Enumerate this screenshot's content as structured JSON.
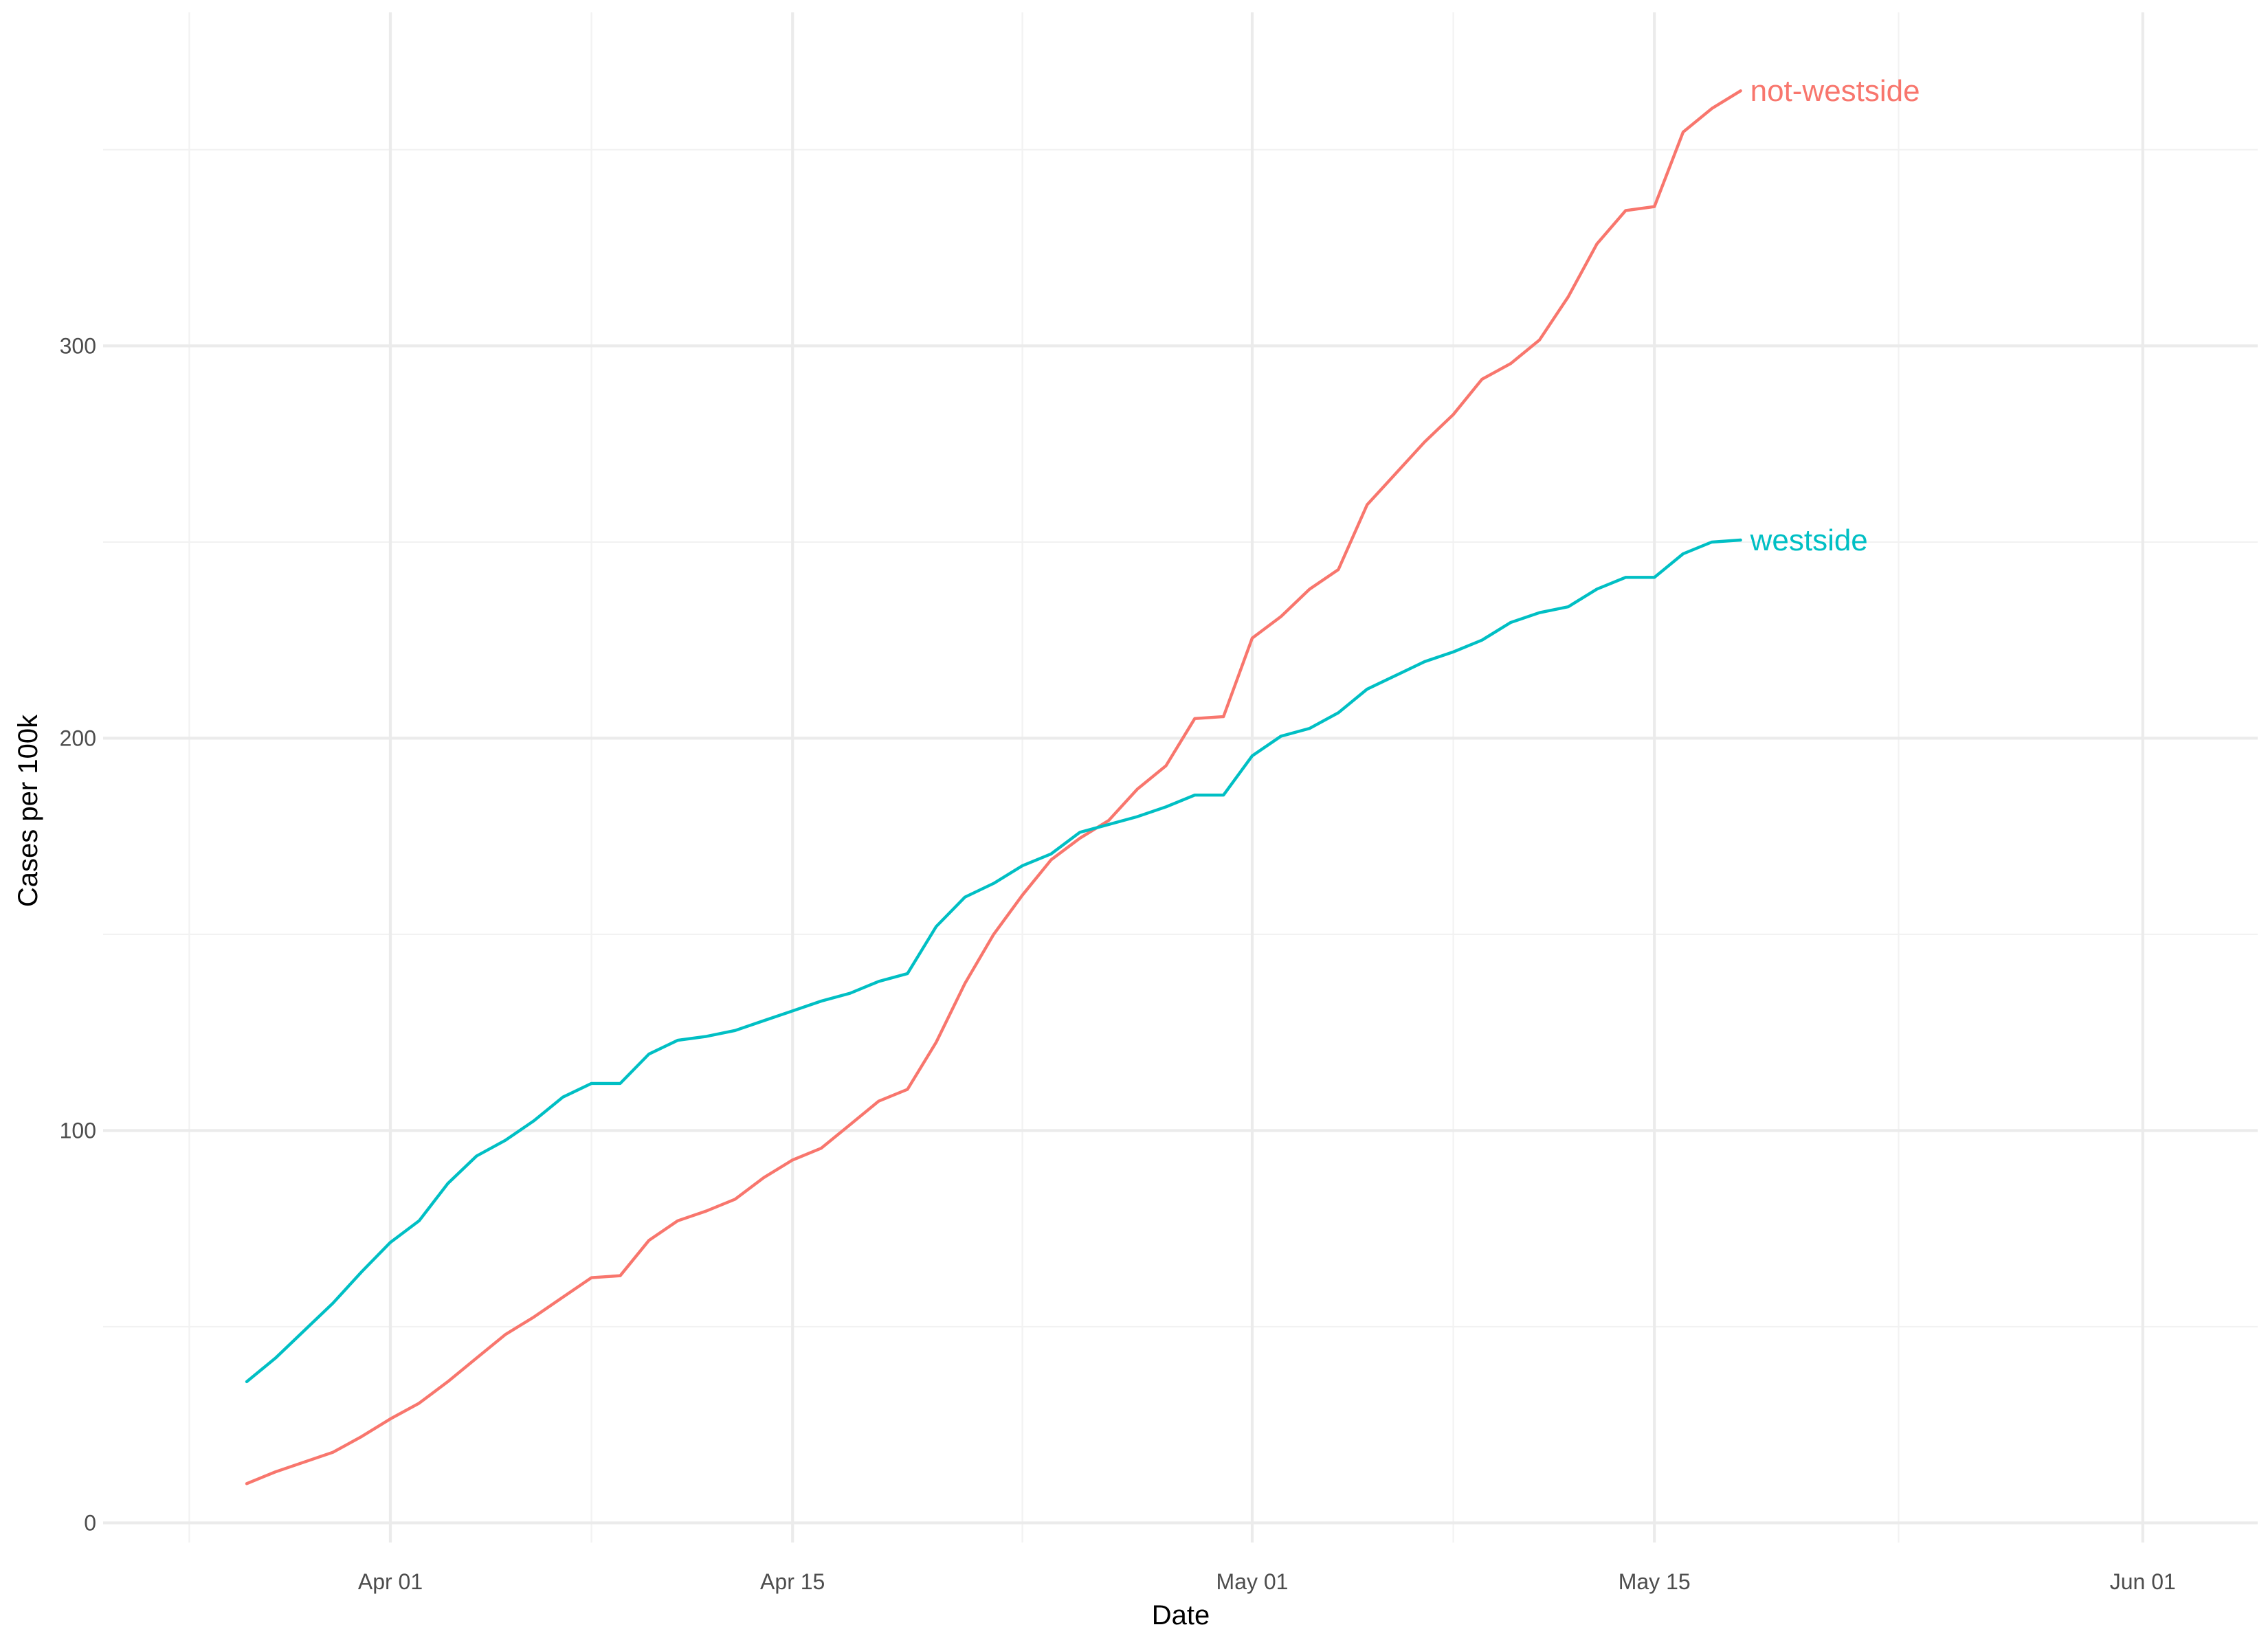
{
  "chart_data": {
    "type": "line",
    "title": "",
    "xlabel": "Date",
    "ylabel": "Cases per 100k",
    "x_axis": {
      "type": "date",
      "range_days": [
        -10,
        65
      ],
      "major_ticks": [
        {
          "day": 0,
          "label": "Apr 01"
        },
        {
          "day": 14,
          "label": "Apr 15"
        },
        {
          "day": 30,
          "label": "May 01"
        },
        {
          "day": 44,
          "label": "May 15"
        },
        {
          "day": 61,
          "label": "Jun 01"
        }
      ],
      "minor_ticks": [
        -7,
        7,
        22,
        37,
        52.5
      ]
    },
    "y_axis": {
      "range": [
        -5,
        385
      ],
      "major_ticks": [
        {
          "value": 0,
          "label": "0"
        },
        {
          "value": 100,
          "label": "100"
        },
        {
          "value": 200,
          "label": "200"
        },
        {
          "value": 300,
          "label": "300"
        }
      ],
      "minor_ticks": [
        50,
        150,
        250,
        350
      ]
    },
    "grid": true,
    "legend": "direct labels at line ends (right)",
    "x_day_origin": "Apr 01",
    "series": [
      {
        "name": "not-westside",
        "color": "#f8766d",
        "points": [
          [
            -5,
            10
          ],
          [
            -4,
            13
          ],
          [
            -3,
            15.5
          ],
          [
            -2,
            18
          ],
          [
            -1,
            22
          ],
          [
            0,
            26.5
          ],
          [
            1,
            30.5
          ],
          [
            2,
            36
          ],
          [
            3,
            42
          ],
          [
            4,
            48
          ],
          [
            5,
            52.5
          ],
          [
            6,
            57.5
          ],
          [
            7,
            62.5
          ],
          [
            8,
            63
          ],
          [
            9,
            72
          ],
          [
            10,
            77
          ],
          [
            11,
            79.5
          ],
          [
            12,
            82.5
          ],
          [
            13,
            88
          ],
          [
            14,
            92.5
          ],
          [
            15,
            95.5
          ],
          [
            16,
            101.5
          ],
          [
            17,
            107.5
          ],
          [
            18,
            110.5
          ],
          [
            19,
            122.5
          ],
          [
            20,
            137.5
          ],
          [
            21,
            150
          ],
          [
            22,
            160
          ],
          [
            23,
            169
          ],
          [
            24,
            174.5
          ],
          [
            25,
            179
          ],
          [
            26,
            187
          ],
          [
            27,
            193
          ],
          [
            28,
            205
          ],
          [
            29,
            205.5
          ],
          [
            30,
            225.5
          ],
          [
            31,
            231
          ],
          [
            32,
            238
          ],
          [
            33,
            243
          ],
          [
            34,
            259.5
          ],
          [
            35,
            267.5
          ],
          [
            36,
            275.5
          ],
          [
            37,
            282.5
          ],
          [
            38,
            291.5
          ],
          [
            39,
            295.5
          ],
          [
            40,
            301.5
          ],
          [
            41,
            312.5
          ],
          [
            42,
            326
          ],
          [
            43,
            334.5
          ],
          [
            44,
            335.5
          ],
          [
            45,
            354.5
          ],
          [
            46,
            360.5
          ],
          [
            47,
            365
          ]
        ]
      },
      {
        "name": "westside",
        "color": "#00bfc4",
        "points": [
          [
            -5,
            36
          ],
          [
            -4,
            42
          ],
          [
            -3,
            49
          ],
          [
            -2,
            56
          ],
          [
            -1,
            64
          ],
          [
            0,
            71.5
          ],
          [
            1,
            77
          ],
          [
            2,
            86.5
          ],
          [
            3,
            93.5
          ],
          [
            4,
            97.5
          ],
          [
            5,
            102.5
          ],
          [
            6,
            108.5
          ],
          [
            7,
            112
          ],
          [
            8,
            112
          ],
          [
            9,
            119.5
          ],
          [
            10,
            123
          ],
          [
            11,
            124
          ],
          [
            12,
            125.5
          ],
          [
            13,
            128
          ],
          [
            14,
            130.5
          ],
          [
            15,
            133
          ],
          [
            16,
            135
          ],
          [
            17,
            138
          ],
          [
            18,
            140
          ],
          [
            19,
            152
          ],
          [
            20,
            159.5
          ],
          [
            21,
            163
          ],
          [
            22,
            167.5
          ],
          [
            23,
            170.5
          ],
          [
            24,
            176
          ],
          [
            25,
            178
          ],
          [
            26,
            180
          ],
          [
            27,
            182.5
          ],
          [
            28,
            185.5
          ],
          [
            29,
            185.5
          ],
          [
            30,
            195.5
          ],
          [
            31,
            200.5
          ],
          [
            32,
            202.5
          ],
          [
            33,
            206.5
          ],
          [
            34,
            212.5
          ],
          [
            35,
            216
          ],
          [
            36,
            219.5
          ],
          [
            37,
            222
          ],
          [
            38,
            225
          ],
          [
            39,
            229.5
          ],
          [
            40,
            232
          ],
          [
            41,
            233.5
          ],
          [
            42,
            238
          ],
          [
            43,
            241
          ],
          [
            44,
            241
          ],
          [
            45,
            247
          ],
          [
            46,
            250
          ],
          [
            47,
            250.5
          ]
        ]
      }
    ]
  }
}
